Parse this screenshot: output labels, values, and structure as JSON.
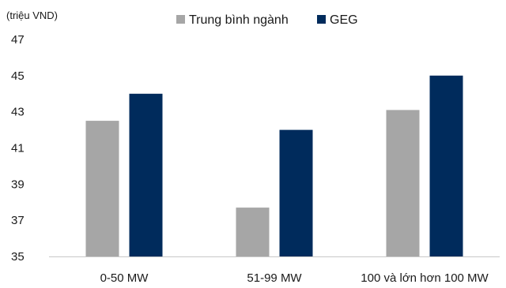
{
  "chart_data": {
    "type": "bar",
    "unit_label": "(triệu VND)",
    "categories": [
      "0-50 MW",
      "51-99 MW",
      "100 và lớn hơn 100 MW"
    ],
    "series": [
      {
        "name": "Trung bình ngành",
        "values": [
          42.5,
          37.7,
          43.1
        ],
        "color": "#a6a6a6"
      },
      {
        "name": "GEG",
        "values": [
          44.0,
          42.0,
          45.0
        ],
        "color": "#002b5c"
      }
    ],
    "ylim": [
      35,
      47
    ],
    "yticks": [
      35,
      37,
      39,
      41,
      43,
      45,
      47
    ],
    "grid": false,
    "legend_position": "top-center"
  }
}
